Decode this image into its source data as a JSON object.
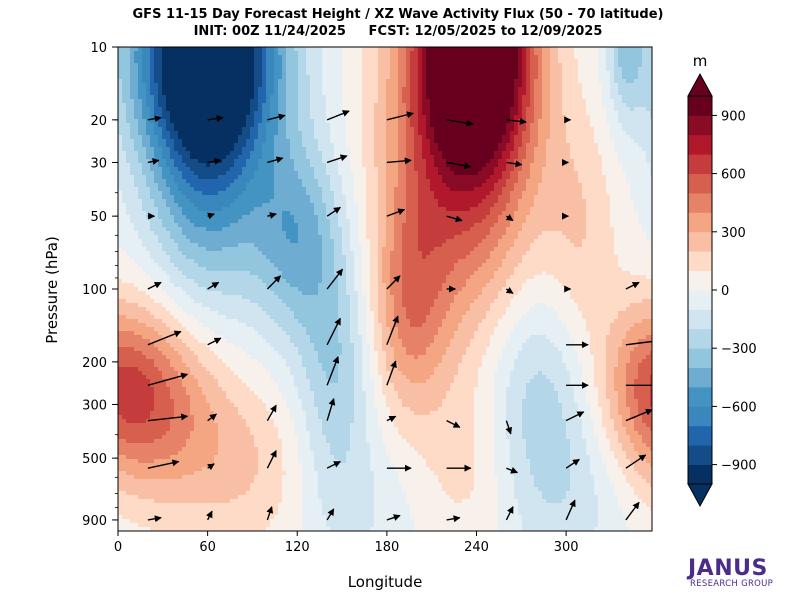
{
  "chart_data": {
    "type": "heatmap",
    "title_line1": "GFS 11-15 Day Forecast Height / XZ Wave Activity Flux (50 - 70 latitude)",
    "title_line2": "INIT: 00Z 11/24/2025     FCST: 12/05/2025 to 12/09/2025",
    "xlabel": "Longitude",
    "ylabel": "Pressure (hPa)",
    "xlim": [
      0,
      357.5
    ],
    "ylim": [
      1000,
      10
    ],
    "yscale": "log",
    "x_ticks": [
      0,
      60,
      120,
      180,
      240,
      300
    ],
    "y_ticks": [
      10,
      20,
      30,
      50,
      100,
      200,
      300,
      500,
      900
    ],
    "colorbar": {
      "unit": "m",
      "min": -1000,
      "max": 1000,
      "step": 100,
      "extend": "both",
      "ticks": [
        -900,
        -600,
        -300,
        0,
        300,
        600,
        900
      ],
      "colors": [
        "#053061",
        "#134c87",
        "#2166ac",
        "#3a87bd",
        "#4393c3",
        "#6eacd1",
        "#92c5de",
        "#b3d6e8",
        "#d1e5f0",
        "#e6eff4",
        "#f8f0eb",
        "#fddbc7",
        "#f8bfa4",
        "#f4a582",
        "#e58268",
        "#d6604d",
        "#c43c3c",
        "#b2182b",
        "#8a0b25",
        "#67001f"
      ]
    },
    "height_anomaly_field": [
      {
        "lon": 30,
        "p": 300,
        "value": 400,
        "width_deg": 45,
        "depth_decades": 0.4
      },
      {
        "lon": 357,
        "p": 250,
        "value": 400,
        "width_deg": 35,
        "depth_decades": 0.35
      },
      {
        "lon": 60,
        "p": 10,
        "value": -1000,
        "width_deg": 50,
        "depth_decades": 0.45
      },
      {
        "lon": 60,
        "p": 25,
        "value": -600,
        "width_deg": 40,
        "depth_decades": 0.65
      },
      {
        "lon": 120,
        "p": 60,
        "value": -420,
        "width_deg": 30,
        "depth_decades": 0.4
      },
      {
        "lon": 145,
        "p": 220,
        "value": -300,
        "width_deg": 25,
        "depth_decades": 0.5
      },
      {
        "lon": 240,
        "p": 10,
        "value": 1000,
        "width_deg": 35,
        "depth_decades": 0.45
      },
      {
        "lon": 230,
        "p": 22,
        "value": 700,
        "width_deg": 50,
        "depth_decades": 0.8
      },
      {
        "lon": 195,
        "p": 120,
        "value": 350,
        "width_deg": 25,
        "depth_decades": 0.45
      },
      {
        "lon": 340,
        "p": 10,
        "value": -300,
        "width_deg": 12,
        "depth_decades": 0.3
      },
      {
        "lon": 310,
        "p": 60,
        "value": 180,
        "width_deg": 25,
        "depth_decades": 0.5
      },
      {
        "lon": 280,
        "p": 250,
        "value": -250,
        "width_deg": 35,
        "depth_decades": 0.45
      },
      {
        "lon": 85,
        "p": 550,
        "value": 180,
        "width_deg": 45,
        "depth_decades": 0.35
      },
      {
        "lon": 235,
        "p": 550,
        "value": 120,
        "width_deg": 30,
        "depth_decades": 0.35
      },
      {
        "lon": 300,
        "p": 700,
        "value": -150,
        "width_deg": 40,
        "depth_decades": 0.4
      },
      {
        "lon": 160,
        "p": 800,
        "value": -100,
        "width_deg": 35,
        "depth_decades": 0.3
      }
    ],
    "wave_activity_flux_vectors": [
      {
        "lon": 20,
        "p": 20,
        "u": 0.6,
        "w": 0.1
      },
      {
        "lon": 60,
        "p": 20,
        "u": 0.7,
        "w": 0.1
      },
      {
        "lon": 100,
        "p": 20,
        "u": 0.8,
        "w": 0.2
      },
      {
        "lon": 140,
        "p": 20,
        "u": 1.0,
        "w": 0.4
      },
      {
        "lon": 180,
        "p": 20,
        "u": 1.2,
        "w": 0.3
      },
      {
        "lon": 220,
        "p": 20,
        "u": 1.2,
        "w": -0.2
      },
      {
        "lon": 260,
        "p": 20,
        "u": 0.9,
        "w": -0.1
      },
      {
        "lon": 300,
        "p": 20,
        "u": 0.2,
        "w": 0.0
      },
      {
        "lon": 20,
        "p": 30,
        "u": 0.5,
        "w": 0.1
      },
      {
        "lon": 60,
        "p": 30,
        "u": 0.6,
        "w": 0.1
      },
      {
        "lon": 100,
        "p": 30,
        "u": 0.7,
        "w": 0.2
      },
      {
        "lon": 140,
        "p": 30,
        "u": 0.9,
        "w": 0.3
      },
      {
        "lon": 180,
        "p": 30,
        "u": 1.1,
        "w": 0.1
      },
      {
        "lon": 220,
        "p": 30,
        "u": 1.1,
        "w": -0.2
      },
      {
        "lon": 260,
        "p": 30,
        "u": 0.7,
        "w": -0.1
      },
      {
        "lon": 300,
        "p": 30,
        "u": 0.1,
        "w": 0.0
      },
      {
        "lon": 20,
        "p": 50,
        "u": 0.3,
        "w": 0.0
      },
      {
        "lon": 60,
        "p": 50,
        "u": 0.3,
        "w": 0.1
      },
      {
        "lon": 100,
        "p": 50,
        "u": 0.4,
        "w": 0.1
      },
      {
        "lon": 140,
        "p": 50,
        "u": 0.6,
        "w": 0.4
      },
      {
        "lon": 180,
        "p": 50,
        "u": 0.8,
        "w": 0.3
      },
      {
        "lon": 220,
        "p": 50,
        "u": 0.7,
        "w": -0.2
      },
      {
        "lon": 260,
        "p": 50,
        "u": 0.3,
        "w": -0.2
      },
      {
        "lon": 300,
        "p": 50,
        "u": 0.1,
        "w": 0.0
      },
      {
        "lon": 20,
        "p": 100,
        "u": 0.6,
        "w": 0.3
      },
      {
        "lon": 60,
        "p": 100,
        "u": 0.5,
        "w": 0.3
      },
      {
        "lon": 100,
        "p": 100,
        "u": 0.6,
        "w": 0.6
      },
      {
        "lon": 140,
        "p": 100,
        "u": 0.7,
        "w": 0.9
      },
      {
        "lon": 180,
        "p": 100,
        "u": 0.6,
        "w": 0.6
      },
      {
        "lon": 220,
        "p": 100,
        "u": 0.4,
        "w": 0.0
      },
      {
        "lon": 260,
        "p": 100,
        "u": 0.3,
        "w": -0.2
      },
      {
        "lon": 300,
        "p": 100,
        "u": 0.2,
        "w": 0.0
      },
      {
        "lon": 340,
        "p": 100,
        "u": 0.6,
        "w": 0.3
      },
      {
        "lon": 20,
        "p": 170,
        "u": 1.5,
        "w": 0.6
      },
      {
        "lon": 60,
        "p": 170,
        "u": 0.6,
        "w": 0.3
      },
      {
        "lon": 140,
        "p": 170,
        "u": 0.6,
        "w": 1.2
      },
      {
        "lon": 180,
        "p": 170,
        "u": 0.5,
        "w": 1.3
      },
      {
        "lon": 300,
        "p": 170,
        "u": 1.0,
        "w": 0.0
      },
      {
        "lon": 340,
        "p": 170,
        "u": 1.6,
        "w": 0.2
      },
      {
        "lon": 20,
        "p": 250,
        "u": 1.8,
        "w": 0.5
      },
      {
        "lon": 140,
        "p": 250,
        "u": 0.5,
        "w": 1.3
      },
      {
        "lon": 180,
        "p": 250,
        "u": 0.4,
        "w": 1.1
      },
      {
        "lon": 300,
        "p": 250,
        "u": 1.0,
        "w": 0.0
      },
      {
        "lon": 340,
        "p": 250,
        "u": 1.5,
        "w": 0.0
      },
      {
        "lon": 20,
        "p": 350,
        "u": 1.8,
        "w": 0.2
      },
      {
        "lon": 60,
        "p": 350,
        "u": 0.4,
        "w": 0.3
      },
      {
        "lon": 100,
        "p": 350,
        "u": 0.4,
        "w": 0.7
      },
      {
        "lon": 140,
        "p": 350,
        "u": 0.3,
        "w": 1.0
      },
      {
        "lon": 180,
        "p": 350,
        "u": 0.4,
        "w": 0.2
      },
      {
        "lon": 220,
        "p": 350,
        "u": 0.6,
        "w": -0.3
      },
      {
        "lon": 260,
        "p": 350,
        "u": 0.2,
        "w": -0.6
      },
      {
        "lon": 300,
        "p": 350,
        "u": 0.8,
        "w": 0.4
      },
      {
        "lon": 340,
        "p": 350,
        "u": 1.2,
        "w": 0.5
      },
      {
        "lon": 20,
        "p": 550,
        "u": 1.4,
        "w": 0.3
      },
      {
        "lon": 60,
        "p": 550,
        "u": 0.3,
        "w": 0.2
      },
      {
        "lon": 100,
        "p": 550,
        "u": 0.4,
        "w": 0.8
      },
      {
        "lon": 140,
        "p": 550,
        "u": 0.6,
        "w": 0.3
      },
      {
        "lon": 180,
        "p": 550,
        "u": 1.1,
        "w": 0.0
      },
      {
        "lon": 220,
        "p": 550,
        "u": 1.1,
        "w": 0.0
      },
      {
        "lon": 260,
        "p": 550,
        "u": 0.5,
        "w": -0.2
      },
      {
        "lon": 300,
        "p": 550,
        "u": 0.6,
        "w": 0.4
      },
      {
        "lon": 340,
        "p": 550,
        "u": 0.9,
        "w": 0.6
      },
      {
        "lon": 20,
        "p": 900,
        "u": 0.6,
        "w": 0.1
      },
      {
        "lon": 60,
        "p": 900,
        "u": 0.2,
        "w": 0.4
      },
      {
        "lon": 100,
        "p": 900,
        "u": 0.2,
        "w": 0.6
      },
      {
        "lon": 140,
        "p": 900,
        "u": 0.3,
        "w": 0.5
      },
      {
        "lon": 180,
        "p": 900,
        "u": 0.6,
        "w": 0.2
      },
      {
        "lon": 220,
        "p": 900,
        "u": 0.6,
        "w": 0.1
      },
      {
        "lon": 260,
        "p": 900,
        "u": 0.3,
        "w": 0.6
      },
      {
        "lon": 300,
        "p": 900,
        "u": 0.4,
        "w": 0.9
      },
      {
        "lon": 340,
        "p": 900,
        "u": 0.6,
        "w": 0.8
      }
    ]
  },
  "logo": {
    "main": "JANUS",
    "sub": "RESEARCH GROUP",
    "color": "#4b2c8a"
  }
}
